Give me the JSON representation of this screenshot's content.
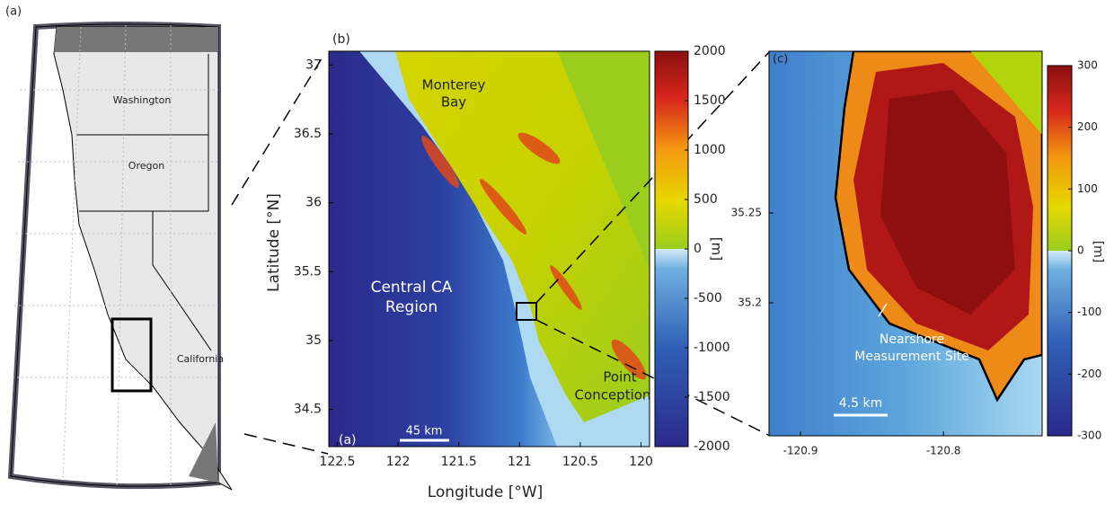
{
  "panel_a": {
    "label": "(a)",
    "states": [
      "Washington",
      "Oregon",
      "California"
    ]
  },
  "panel_b": {
    "label": "(b)",
    "inset_label": "(a)",
    "annotations": [
      "Monterey",
      "Bay",
      "Central CA",
      "Region",
      "Point",
      "Conception"
    ],
    "scale_bar": "45 km",
    "xlabel": "Longitude [°W]",
    "ylabel": "Latitude [°N]",
    "xlim": [
      122.57,
      119.93
    ],
    "ylim": [
      34.23,
      37.1
    ],
    "xticks": [
      122.5,
      122,
      121.5,
      121,
      120.5,
      120
    ],
    "yticks": [
      34.5,
      35,
      35.5,
      36,
      36.5,
      37
    ],
    "colorbar": {
      "label": "[m]",
      "clim": [
        -2000,
        2000
      ],
      "ticks": [
        -2000,
        -1500,
        -1000,
        -500,
        0,
        500,
        1000,
        1500,
        2000
      ]
    }
  },
  "panel_c": {
    "label": "(c)",
    "annotations": [
      "Nearshore",
      "Measurement Site"
    ],
    "scale_bar": "4.5 km",
    "xlim": [
      -120.922,
      -120.731
    ],
    "ylim": [
      35.126,
      35.34
    ],
    "xticks": [
      -120.9,
      -120.8
    ],
    "yticks": [
      35.2,
      35.25
    ],
    "colorbar": {
      "label": "[m]",
      "clim": [
        -300,
        300
      ],
      "ticks": [
        -300,
        -200,
        -100,
        0,
        100,
        200,
        300
      ]
    }
  }
}
